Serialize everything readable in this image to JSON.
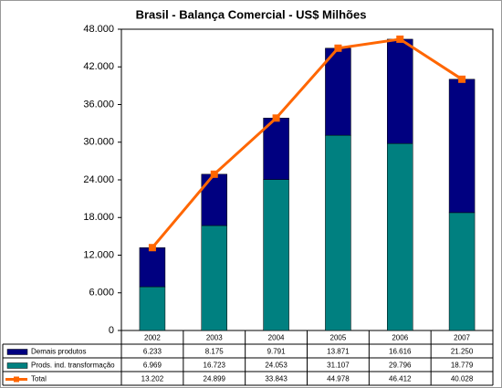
{
  "chart_data": {
    "type": "bar",
    "stacked": true,
    "title": "Brasil - Balança Comercial - US$ Milhões",
    "categories": [
      "2002",
      "2003",
      "2004",
      "2005",
      "2006",
      "2007"
    ],
    "series": [
      {
        "name": "Demais produtos",
        "color": "#000080",
        "values": [
          6233,
          8175,
          9791,
          13871,
          16616,
          21250
        ],
        "value_labels": [
          "6.233",
          "8.175",
          "9.791",
          "13.871",
          "16.616",
          "21.250"
        ]
      },
      {
        "name": "Prods. ind. transformação",
        "color": "#008080",
        "values": [
          6969,
          16723,
          24053,
          31107,
          29796,
          18779
        ],
        "value_labels": [
          "6.969",
          "16.723",
          "24.053",
          "31.107",
          "29.796",
          "18.779"
        ]
      },
      {
        "name": "Total",
        "type": "line",
        "color": "#ff6600",
        "values": [
          13202,
          24899,
          33843,
          44978,
          46412,
          40028
        ],
        "value_labels": [
          "13.202",
          "24.899",
          "33.843",
          "44.978",
          "46.412",
          "40.028"
        ]
      }
    ],
    "ylim": [
      0,
      48000
    ],
    "yticks": [
      {
        "value": 0,
        "label": "0"
      },
      {
        "value": 6000,
        "label": "6.000"
      },
      {
        "value": 12000,
        "label": "12.000"
      },
      {
        "value": 18000,
        "label": "18.000"
      },
      {
        "value": 24000,
        "label": "24.000"
      },
      {
        "value": 30000,
        "label": "30.000"
      },
      {
        "value": 36000,
        "label": "36.000"
      },
      {
        "value": 42000,
        "label": "42.000"
      },
      {
        "value": 48000,
        "label": "48.000"
      }
    ]
  }
}
